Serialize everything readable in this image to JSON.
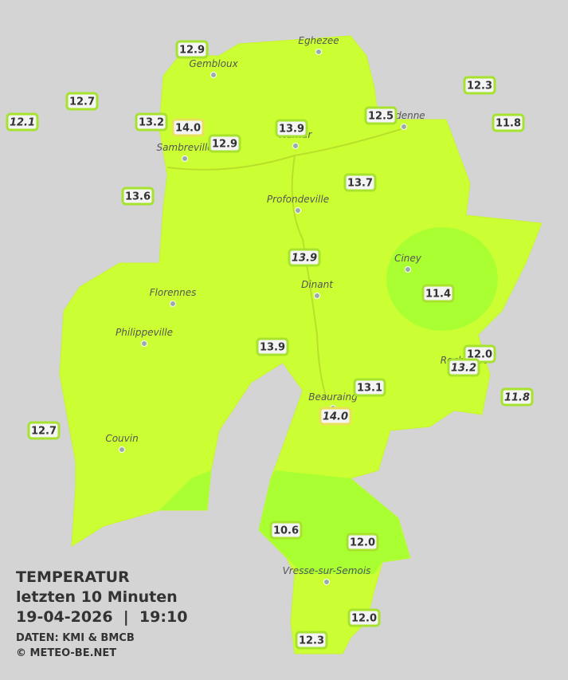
{
  "legend": {
    "title": "TEMPERATUR",
    "subtitle": "letzten 10 Minuten",
    "datetime": "19-04-2026  |  19:10",
    "source": "DATEN: KMI & BMCB",
    "copyright": "© METEO-BE.NET"
  },
  "towns": [
    "Eghezee",
    "Gembloux",
    "Andenne",
    "Namur",
    "Sambreville",
    "Profondeville",
    "Ciney",
    "Dinant",
    "Florennes",
    "Philippeville",
    "Rochefort",
    "Beauraing",
    "Couvin",
    "Vresse-sur-Semois"
  ],
  "stations": [
    {
      "label": "12.9",
      "italic": false,
      "color": "#a6e22e"
    },
    {
      "label": "12.7",
      "italic": false,
      "color": "#a6e22e"
    },
    {
      "label": "12.1",
      "italic": true,
      "color": "#a6e22e"
    },
    {
      "label": "13.2",
      "italic": false,
      "color": "#a6e22e"
    },
    {
      "label": "14.0",
      "italic": false,
      "color": "#e8e25a"
    },
    {
      "label": "12.9",
      "italic": false,
      "color": "#a6e22e"
    },
    {
      "label": "13.9",
      "italic": false,
      "color": "#a6e22e"
    },
    {
      "label": "12.5",
      "italic": false,
      "color": "#a6e22e"
    },
    {
      "label": "12.3",
      "italic": false,
      "color": "#a6e22e"
    },
    {
      "label": "11.8",
      "italic": false,
      "color": "#a6e22e"
    },
    {
      "label": "13.6",
      "italic": false,
      "color": "#a6e22e"
    },
    {
      "label": "13.7",
      "italic": false,
      "color": "#a6e22e"
    },
    {
      "label": "13.9",
      "italic": true,
      "color": "#a6e22e"
    },
    {
      "label": "11.4",
      "italic": false,
      "color": "#a6e22e"
    },
    {
      "label": "13.9",
      "italic": false,
      "color": "#a6e22e"
    },
    {
      "label": "12.0",
      "italic": false,
      "color": "#a6e22e"
    },
    {
      "label": "13.2",
      "italic": true,
      "color": "#a6e22e"
    },
    {
      "label": "11.8",
      "italic": true,
      "color": "#a6e22e"
    },
    {
      "label": "13.1",
      "italic": false,
      "color": "#a6e22e"
    },
    {
      "label": "14.0",
      "italic": true,
      "color": "#e8e25a"
    },
    {
      "label": "12.7",
      "italic": false,
      "color": "#a6e22e"
    },
    {
      "label": "10.6",
      "italic": false,
      "color": "#a6e22e"
    },
    {
      "label": "12.0",
      "italic": false,
      "color": "#a6e22e"
    },
    {
      "label": "12.0",
      "italic": false,
      "color": "#a6e22e"
    },
    {
      "label": "12.3",
      "italic": false,
      "color": "#a6e22e"
    }
  ]
}
